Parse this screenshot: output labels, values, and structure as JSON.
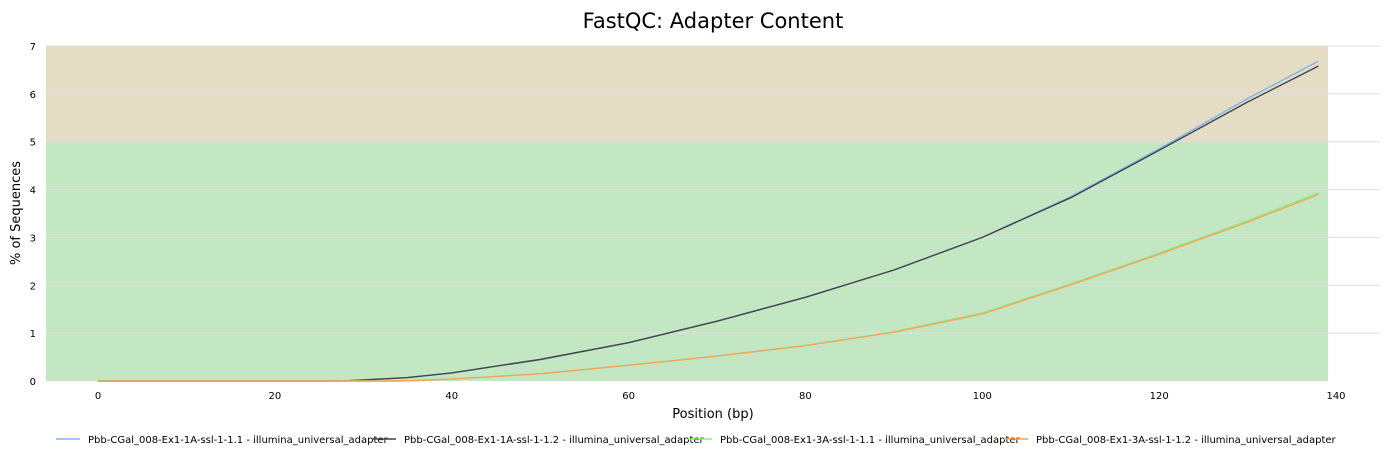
{
  "chart_data": {
    "type": "line",
    "title": "FastQC: Adapter Content",
    "xlabel": "Position (bp)",
    "ylabel": "% of Sequences",
    "xlim": [
      -6,
      140
    ],
    "ylim": [
      0,
      7
    ],
    "x_ticks": [
      0,
      20,
      40,
      60,
      80,
      100,
      120,
      140
    ],
    "y_ticks": [
      0,
      1,
      2,
      3,
      4,
      5,
      6,
      7
    ],
    "grid": true,
    "legend_position": "bottom",
    "bands": [
      {
        "from": 0,
        "to": 5,
        "color": "#c3e6c3"
      },
      {
        "from": 5,
        "to": 7,
        "color": "#e5dcc5"
      }
    ],
    "series": [
      {
        "name": "Pbb-CGal_008-Ex1-1A-ssl-1-1.1 - illumina_universal_adapter",
        "color": "#7cb5ec",
        "x": [
          0,
          10,
          20,
          26,
          28,
          30,
          35,
          40,
          50,
          60,
          70,
          80,
          90,
          100,
          110,
          120,
          130,
          138
        ],
        "y": [
          0,
          0,
          0,
          0,
          0.005,
          0.02,
          0.07,
          0.17,
          0.45,
          0.8,
          1.25,
          1.75,
          2.32,
          3.0,
          3.85,
          4.85,
          5.9,
          6.68
        ]
      },
      {
        "name": "Pbb-CGal_008-Ex1-1A-ssl-1-1.2 - illumina_universal_adapter",
        "color": "#434348",
        "x": [
          0,
          10,
          20,
          26,
          28,
          30,
          35,
          40,
          50,
          60,
          70,
          80,
          90,
          100,
          110,
          120,
          130,
          138
        ],
        "y": [
          0,
          0,
          0,
          0,
          0.005,
          0.02,
          0.07,
          0.17,
          0.45,
          0.8,
          1.25,
          1.75,
          2.32,
          3.0,
          3.83,
          4.82,
          5.83,
          6.58
        ]
      },
      {
        "name": "Pbb-CGal_008-Ex1-3A-ssl-1-1.1 - illumina_universal_adapter",
        "color": "#90ed7d",
        "x": [
          0,
          10,
          20,
          30,
          34,
          36,
          40,
          50,
          60,
          70,
          80,
          90,
          100,
          110,
          120,
          130,
          138
        ],
        "y": [
          0,
          0,
          0,
          0,
          0,
          0.01,
          0.04,
          0.15,
          0.33,
          0.52,
          0.74,
          1.03,
          1.42,
          2.03,
          2.67,
          3.35,
          3.93
        ]
      },
      {
        "name": "Pbb-CGal_008-Ex1-3A-ssl-1-1.2 - illumina_universal_adapter",
        "color": "#f7a35c",
        "x": [
          0,
          10,
          20,
          30,
          34,
          36,
          40,
          50,
          60,
          70,
          80,
          90,
          100,
          110,
          120,
          130,
          138
        ],
        "y": [
          0,
          0,
          0,
          0,
          0,
          0.01,
          0.04,
          0.15,
          0.33,
          0.52,
          0.74,
          1.02,
          1.4,
          2.01,
          2.65,
          3.32,
          3.9
        ]
      }
    ]
  }
}
